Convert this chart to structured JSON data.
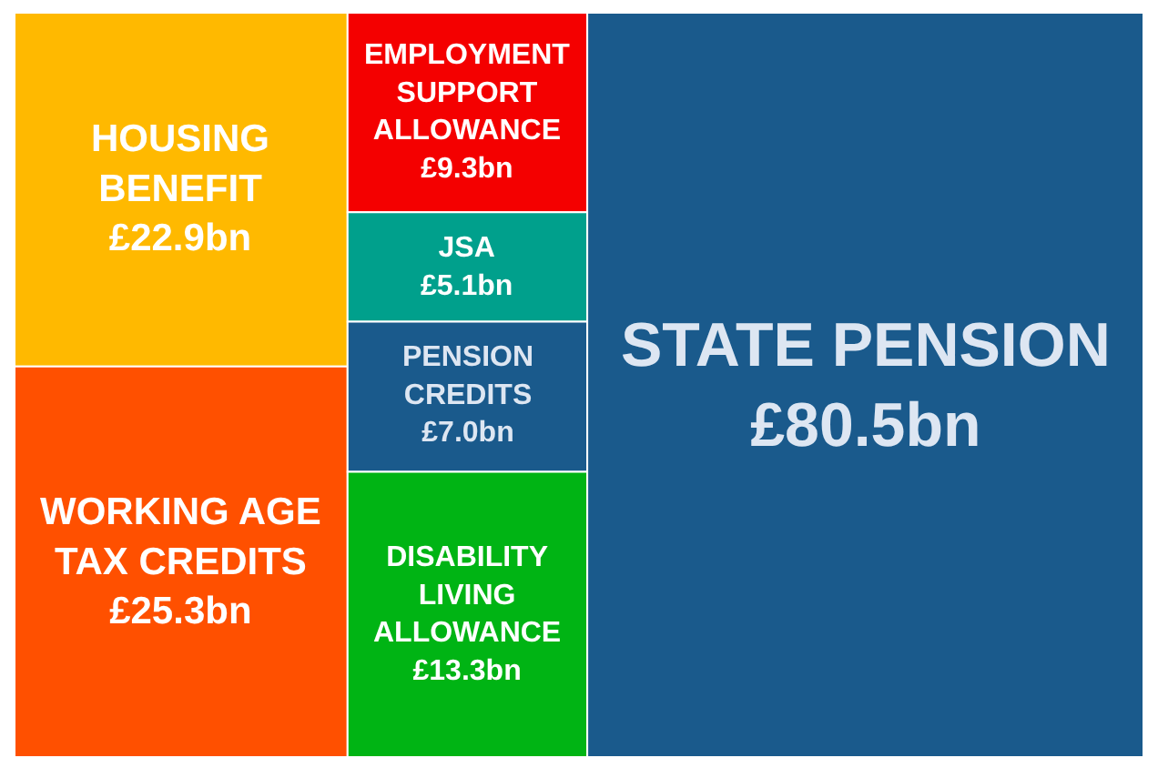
{
  "chart_data": {
    "type": "other",
    "categories": [
      "HOUSING BENEFIT",
      "WORKING AGE TAX CREDITS",
      "EMPLOYMENT SUPPORT ALLOWANCE",
      "JSA",
      "PENSION CREDITS",
      "DISABILITY LIVING ALLOWANCE",
      "STATE PENSION"
    ],
    "series": [
      {
        "values": [
          22.9,
          25.3,
          null,
          null,
          null,
          null,
          null
        ],
        "value_labels": [
          "£22.9bn",
          "£25.3bn",
          null,
          null,
          null,
          null,
          null
        ],
        "colors": [
          "#ffb900",
          "#ff5000",
          null,
          null,
          null,
          null,
          null
        ]
      },
      {
        "values": [
          null,
          null,
          9.3,
          5.1,
          7.0,
          13.3,
          null
        ],
        "value_labels": [
          null,
          null,
          "£9.3bn",
          "£5.1bn",
          "£7.0bn",
          "£13.3bn",
          null
        ],
        "colors": [
          null,
          null,
          "#f40000",
          "#00a08c",
          "#1a5a8c",
          "#00b414",
          null
        ]
      },
      {
        "values": [
          null,
          null,
          null,
          null,
          null,
          null,
          80.5
        ],
        "value_labels": [
          null,
          null,
          null,
          null,
          null,
          null,
          "£80.5bn"
        ],
        "color": "#1a5a8c"
      }
    ]
  }
}
